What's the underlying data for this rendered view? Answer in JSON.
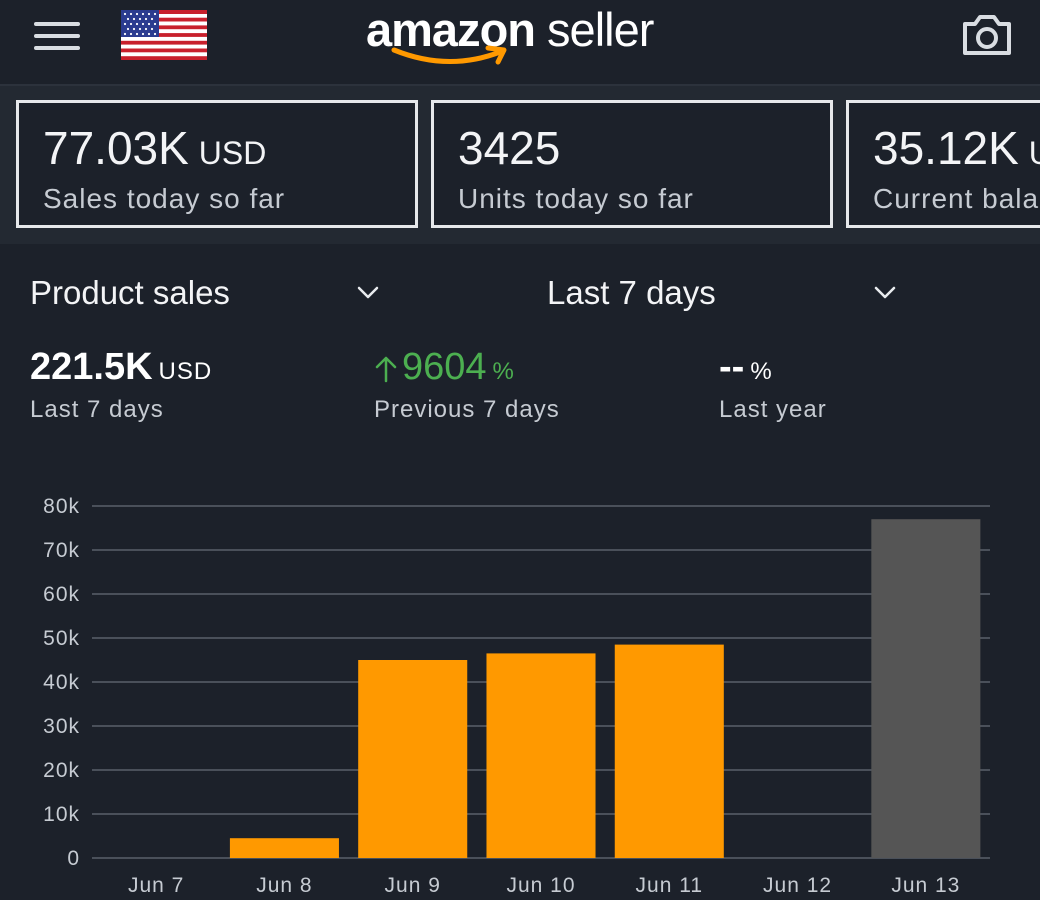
{
  "header": {
    "brand_bold": "amazon",
    "brand_regular": " seller",
    "icons": {
      "menu": "hamburger-icon",
      "flag": "us-flag-icon",
      "camera": "camera-icon"
    },
    "brand_accent": "#f90"
  },
  "kpis": [
    {
      "value": "77.03K",
      "unit": "USD",
      "label": "Sales today so far"
    },
    {
      "value": "3425",
      "unit": "",
      "label": "Units today so far"
    },
    {
      "value": "35.12K",
      "unit": "USD",
      "label": "Current bala"
    }
  ],
  "selectors": {
    "metric": "Product sales",
    "range": "Last 7 days"
  },
  "stats": [
    {
      "value": "221.5K",
      "unit": "USD",
      "label": "Last 7 days"
    },
    {
      "value": "9604",
      "unit": "%",
      "label": "Previous 7 days",
      "trend": "up"
    },
    {
      "value": "--",
      "unit": "%",
      "label": "Last year"
    }
  ],
  "chart_data": {
    "type": "bar",
    "categories": [
      "Jun 7",
      "Jun 8",
      "Jun 9",
      "Jun 10",
      "Jun 11",
      "Jun 12",
      "Jun 13"
    ],
    "values": [
      0,
      4500,
      45000,
      46500,
      48500,
      0,
      77000
    ],
    "bar_colors": [
      "#ff9900",
      "#ff9900",
      "#ff9900",
      "#ff9900",
      "#ff9900",
      "#ff9900",
      "#555555"
    ],
    "ylim": [
      0,
      80000
    ],
    "yticks": [
      "0",
      "10k",
      "20k",
      "30k",
      "40k",
      "50k",
      "60k",
      "70k",
      "80k"
    ],
    "grid": true
  },
  "colors": {
    "background": "#1c212a",
    "bar": "#ff9900",
    "bar_today": "#555555",
    "positive": "#4caf50"
  }
}
